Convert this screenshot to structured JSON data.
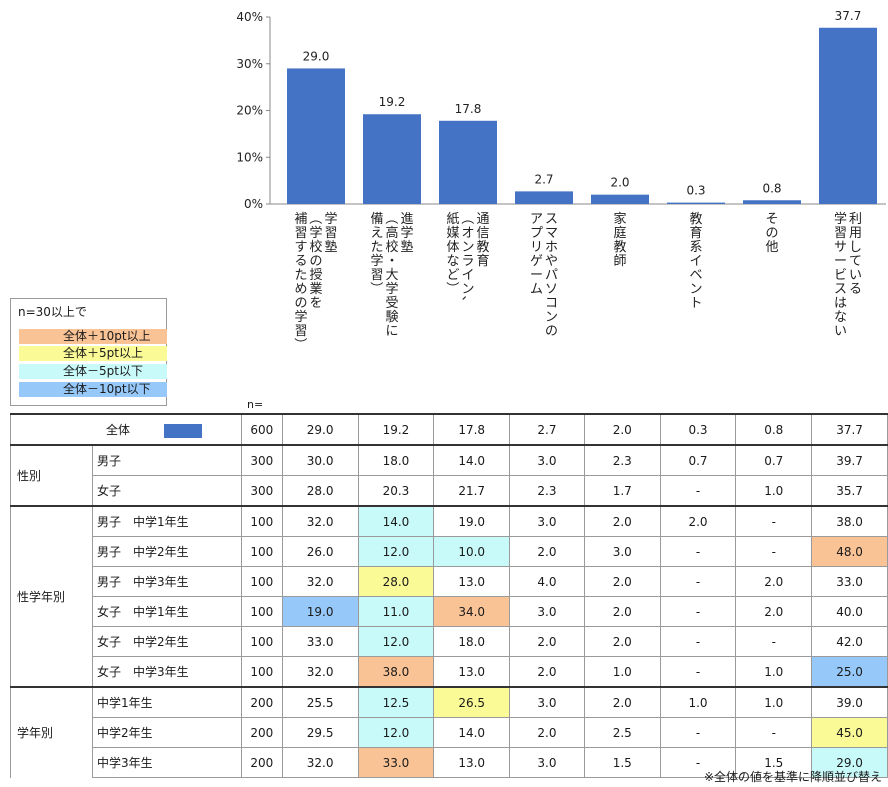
{
  "chart_data": {
    "type": "bar",
    "ylim": [
      0,
      40
    ],
    "yticks": [
      "0%",
      "10%",
      "20%",
      "30%",
      "40%"
    ],
    "bar_color": "#4472c4",
    "categories": [
      [
        "学習塾",
        "（学校の授業を",
        "補習するための学習）"
      ],
      [
        "進学塾",
        "（高校・大学受験に",
        "備えた学習）"
      ],
      [
        "通信教育",
        "（オンライン、",
        "紙媒体など）"
      ],
      [
        "スマホやパソコンの",
        "アプリゲーム"
      ],
      [
        "家庭教師"
      ],
      [
        "教育系イベント"
      ],
      [
        "その他"
      ],
      [
        "利用している",
        "学習サービスはない"
      ]
    ],
    "values": [
      29.0,
      19.2,
      17.8,
      2.7,
      2.0,
      0.3,
      0.8,
      37.7
    ],
    "value_labels": [
      "29.0",
      "19.2",
      "17.8",
      "2.7",
      "2.0",
      "0.3",
      "0.8",
      "37.7"
    ]
  },
  "legend": {
    "title": "n=30以上で",
    "items": [
      {
        "label": "全体＋10pt以上",
        "color": "#fac396"
      },
      {
        "label": "全体＋5pt以上",
        "color": "#fafa96"
      },
      {
        "label": "全体－5pt以下",
        "color": "#c8fafa"
      },
      {
        "label": "全体－10pt以下",
        "color": "#96c8fa"
      }
    ]
  },
  "table": {
    "n_header": "n=",
    "total": {
      "label": "全体",
      "n": "600",
      "values": [
        "29.0",
        "19.2",
        "17.8",
        "2.7",
        "2.0",
        "0.3",
        "0.8",
        "37.7"
      ]
    },
    "groups": [
      {
        "name": "性別",
        "rows": [
          {
            "label": "男子",
            "n": "300",
            "values": [
              "30.0",
              "18.0",
              "14.0",
              "3.0",
              "2.3",
              "0.7",
              "0.7",
              "39.7"
            ],
            "hl": [
              "",
              "",
              "",
              "",
              "",
              "",
              "",
              ""
            ]
          },
          {
            "label": "女子",
            "n": "300",
            "values": [
              "28.0",
              "20.3",
              "21.7",
              "2.3",
              "1.7",
              "-",
              "1.0",
              "35.7"
            ],
            "hl": [
              "",
              "",
              "",
              "",
              "",
              "",
              "",
              ""
            ]
          }
        ]
      },
      {
        "name": "性学年別",
        "rows": [
          {
            "label": "男子　中学1年生",
            "n": "100",
            "values": [
              "32.0",
              "14.0",
              "19.0",
              "3.0",
              "2.0",
              "2.0",
              "-",
              "38.0"
            ],
            "hl": [
              "",
              "neg5",
              "",
              "",
              "",
              "",
              "",
              ""
            ]
          },
          {
            "label": "男子　中学2年生",
            "n": "100",
            "values": [
              "26.0",
              "12.0",
              "10.0",
              "2.0",
              "3.0",
              "-",
              "-",
              "48.0"
            ],
            "hl": [
              "",
              "neg5",
              "neg5",
              "",
              "",
              "",
              "",
              "pos10"
            ]
          },
          {
            "label": "男子　中学3年生",
            "n": "100",
            "values": [
              "32.0",
              "28.0",
              "13.0",
              "4.0",
              "2.0",
              "-",
              "2.0",
              "33.0"
            ],
            "hl": [
              "",
              "pos5",
              "",
              "",
              "",
              "",
              "",
              ""
            ]
          },
          {
            "label": "女子　中学1年生",
            "n": "100",
            "values": [
              "19.0",
              "11.0",
              "34.0",
              "3.0",
              "2.0",
              "-",
              "2.0",
              "40.0"
            ],
            "hl": [
              "neg10",
              "neg5",
              "pos10",
              "",
              "",
              "",
              "",
              ""
            ]
          },
          {
            "label": "女子　中学2年生",
            "n": "100",
            "values": [
              "33.0",
              "12.0",
              "18.0",
              "2.0",
              "2.0",
              "-",
              "-",
              "42.0"
            ],
            "hl": [
              "",
              "neg5",
              "",
              "",
              "",
              "",
              "",
              ""
            ]
          },
          {
            "label": "女子　中学3年生",
            "n": "100",
            "values": [
              "32.0",
              "38.0",
              "13.0",
              "2.0",
              "1.0",
              "-",
              "1.0",
              "25.0"
            ],
            "hl": [
              "",
              "pos10",
              "",
              "",
              "",
              "",
              "",
              "neg10"
            ]
          }
        ]
      },
      {
        "name": "学年別",
        "rows": [
          {
            "label": "中学1年生",
            "n": "200",
            "values": [
              "25.5",
              "12.5",
              "26.5",
              "3.0",
              "2.0",
              "1.0",
              "1.0",
              "39.0"
            ],
            "hl": [
              "",
              "neg5",
              "pos5",
              "",
              "",
              "",
              "",
              ""
            ]
          },
          {
            "label": "中学2年生",
            "n": "200",
            "values": [
              "29.5",
              "12.0",
              "14.0",
              "2.0",
              "2.5",
              "-",
              "-",
              "45.0"
            ],
            "hl": [
              "",
              "neg5",
              "",
              "",
              "",
              "",
              "",
              "pos5"
            ]
          },
          {
            "label": "中学3年生",
            "n": "200",
            "values": [
              "32.0",
              "33.0",
              "13.0",
              "3.0",
              "1.5",
              "-",
              "1.5",
              "29.0"
            ],
            "hl": [
              "",
              "pos10",
              "",
              "",
              "",
              "",
              "",
              "neg5"
            ]
          }
        ]
      }
    ]
  },
  "note": "※全体の値を基準に降順並び替え"
}
